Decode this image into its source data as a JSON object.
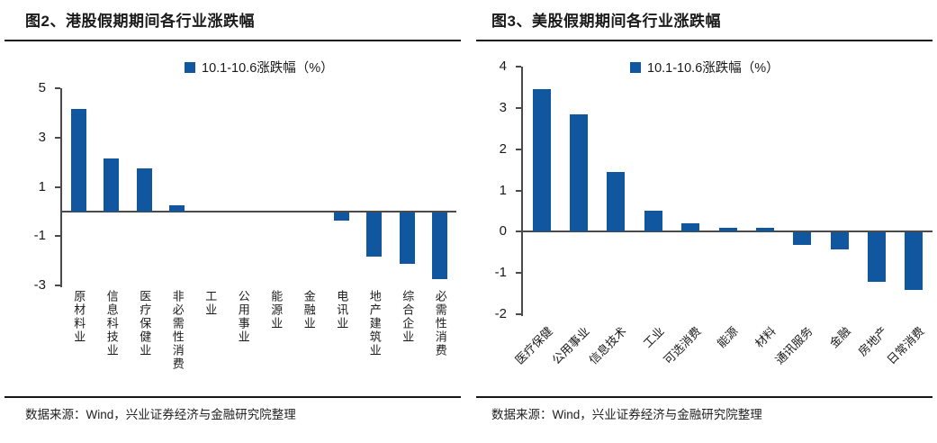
{
  "colors": {
    "bar_blue": "#1057A0",
    "axis_gray": "#4a4a4a",
    "title_text": "#1a1a1a",
    "rule_black": "#161616"
  },
  "chart_data": [
    {
      "type": "bar",
      "title": "图2、港股假期期间各行业涨跌幅",
      "legend": "10.1-10.6涨跌幅（%）",
      "source": "数据来源：Wind，兴业证券经济与金融研究院整理",
      "categories": [
        "原材料业",
        "信息科技业",
        "医疗保健业",
        "非必需性消费",
        "工业",
        "公用事业",
        "能源业",
        "金融业",
        "电讯业",
        "地产建筑业",
        "综合企业",
        "必需性消费"
      ],
      "values": [
        4.15,
        2.15,
        1.75,
        0.25,
        0,
        0,
        0,
        0,
        -0.35,
        -1.8,
        -2.1,
        -2.7
      ],
      "ylim": [
        -3,
        5
      ],
      "yticks": [
        5,
        3,
        1,
        -1,
        -3
      ],
      "xlabel": "",
      "ylabel": "",
      "grid": false,
      "legend_position": "top-center",
      "bar_color": "#1057A0",
      "xlabel_orientation": "vertical"
    },
    {
      "type": "bar",
      "title": "图3、美股假期期间各行业涨跌幅",
      "legend": "10.1-10.6涨跌幅（%）",
      "source": "数据来源：Wind，兴业证券经济与金融研究院整理",
      "categories": [
        "医疗保健",
        "公用事业",
        "信息技术",
        "工业",
        "可选消费",
        "能源",
        "材料",
        "通讯服务",
        "金融",
        "房地产",
        "日常消费"
      ],
      "values": [
        3.45,
        2.85,
        1.45,
        0.5,
        0.2,
        0.1,
        0.1,
        -0.3,
        -0.4,
        -1.2,
        -1.4
      ],
      "ylim": [
        -2,
        4
      ],
      "yticks": [
        4,
        3,
        2,
        1,
        0,
        -1,
        -2
      ],
      "xlabel": "",
      "ylabel": "",
      "grid": false,
      "legend_position": "top-center",
      "bar_color": "#1057A0",
      "xlabel_orientation": "rotated-45"
    }
  ]
}
